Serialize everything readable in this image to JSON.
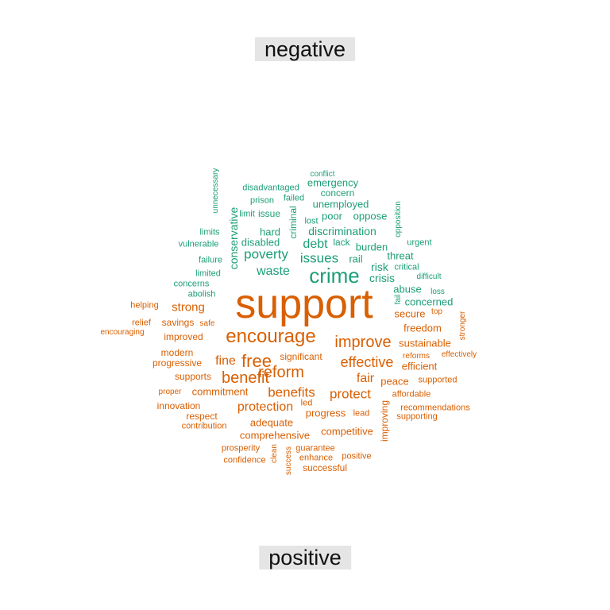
{
  "labels": {
    "negative": "negative",
    "positive": "positive"
  },
  "colors": {
    "negative": "#1b9e77",
    "positive": "#d95f02"
  },
  "words": [
    {
      "t": "support",
      "s": "positive",
      "v": 0
    },
    {
      "t": "crime",
      "s": "negative",
      "v": 0
    },
    {
      "t": "encourage",
      "s": "positive",
      "v": 0
    },
    {
      "t": "improve",
      "s": "positive",
      "v": 0
    },
    {
      "t": "free",
      "s": "positive",
      "v": 0
    },
    {
      "t": "reform",
      "s": "positive",
      "v": 0
    },
    {
      "t": "benefit",
      "s": "positive",
      "v": 0
    },
    {
      "t": "effective",
      "s": "positive",
      "v": 0
    },
    {
      "t": "issues",
      "s": "negative",
      "v": 0
    },
    {
      "t": "poverty",
      "s": "negative",
      "v": 0
    },
    {
      "t": "debt",
      "s": "negative",
      "v": 0
    },
    {
      "t": "waste",
      "s": "negative",
      "v": 0
    },
    {
      "t": "benefits",
      "s": "positive",
      "v": 0
    },
    {
      "t": "protect",
      "s": "positive",
      "v": 0
    },
    {
      "t": "protection",
      "s": "positive",
      "v": 0
    },
    {
      "t": "fine",
      "s": "positive",
      "v": 0
    },
    {
      "t": "fair",
      "s": "positive",
      "v": 0
    },
    {
      "t": "strong",
      "s": "positive",
      "v": 0
    },
    {
      "t": "crisis",
      "s": "negative",
      "v": 0
    },
    {
      "t": "risk",
      "s": "negative",
      "v": 0
    },
    {
      "t": "conservative",
      "s": "negative",
      "v": 1
    },
    {
      "t": "discrimination",
      "s": "negative",
      "v": 0
    },
    {
      "t": "hard",
      "s": "negative",
      "v": 0
    },
    {
      "t": "disabled",
      "s": "negative",
      "v": 0
    },
    {
      "t": "rail",
      "s": "negative",
      "v": 0
    },
    {
      "t": "burden",
      "s": "negative",
      "v": 0
    },
    {
      "t": "threat",
      "s": "negative",
      "v": 0
    },
    {
      "t": "unemployed",
      "s": "negative",
      "v": 0
    },
    {
      "t": "poor",
      "s": "negative",
      "v": 0
    },
    {
      "t": "oppose",
      "s": "negative",
      "v": 0
    },
    {
      "t": "emergency",
      "s": "negative",
      "v": 0
    },
    {
      "t": "concern",
      "s": "negative",
      "v": 0
    },
    {
      "t": "criminal",
      "s": "negative",
      "v": 1
    },
    {
      "t": "issue",
      "s": "negative",
      "v": 0
    },
    {
      "t": "lack",
      "s": "negative",
      "v": 0
    },
    {
      "t": "freedom",
      "s": "positive",
      "v": 0
    },
    {
      "t": "sustainable",
      "s": "positive",
      "v": 0
    },
    {
      "t": "peace",
      "s": "positive",
      "v": 0
    },
    {
      "t": "progress",
      "s": "positive",
      "v": 0
    },
    {
      "t": "adequate",
      "s": "positive",
      "v": 0
    },
    {
      "t": "comprehensive",
      "s": "positive",
      "v": 0
    },
    {
      "t": "commitment",
      "s": "positive",
      "v": 0
    },
    {
      "t": "competitive",
      "s": "positive",
      "v": 0
    },
    {
      "t": "secure",
      "s": "positive",
      "v": 0
    },
    {
      "t": "efficient",
      "s": "positive",
      "v": 0
    },
    {
      "t": "concerned",
      "s": "negative",
      "v": 0
    },
    {
      "t": "abuse",
      "s": "negative",
      "v": 0
    },
    {
      "t": "savings",
      "s": "positive",
      "v": 0
    },
    {
      "t": "improved",
      "s": "positive",
      "v": 0
    },
    {
      "t": "modern",
      "s": "positive",
      "v": 0
    },
    {
      "t": "progressive",
      "s": "positive",
      "v": 0
    },
    {
      "t": "supports",
      "s": "positive",
      "v": 0
    },
    {
      "t": "innovation",
      "s": "positive",
      "v": 0
    },
    {
      "t": "respect",
      "s": "positive",
      "v": 0
    },
    {
      "t": "significant",
      "s": "positive",
      "v": 0
    },
    {
      "t": "improving",
      "s": "positive",
      "v": 1
    },
    {
      "t": "disadvantaged",
      "s": "negative",
      "v": 0
    },
    {
      "t": "prison",
      "s": "negative",
      "v": 0
    },
    {
      "t": "failed",
      "s": "negative",
      "v": 0
    },
    {
      "t": "conflict",
      "s": "negative",
      "v": 0
    },
    {
      "t": "limit",
      "s": "negative",
      "v": 0
    },
    {
      "t": "lost",
      "s": "negative",
      "v": 0
    },
    {
      "t": "limits",
      "s": "negative",
      "v": 0
    },
    {
      "t": "vulnerable",
      "s": "negative",
      "v": 0
    },
    {
      "t": "failure",
      "s": "negative",
      "v": 0
    },
    {
      "t": "limited",
      "s": "negative",
      "v": 0
    },
    {
      "t": "concerns",
      "s": "negative",
      "v": 0
    },
    {
      "t": "abolish",
      "s": "negative",
      "v": 0
    },
    {
      "t": "critical",
      "s": "negative",
      "v": 0
    },
    {
      "t": "urgent",
      "s": "negative",
      "v": 0
    },
    {
      "t": "difficult",
      "s": "negative",
      "v": 0
    },
    {
      "t": "loss",
      "s": "negative",
      "v": 0
    },
    {
      "t": "opposition",
      "s": "negative",
      "v": 1
    },
    {
      "t": "unnecessary",
      "s": "negative",
      "v": 1
    },
    {
      "t": "fail",
      "s": "negative",
      "v": 1
    },
    {
      "t": "helping",
      "s": "positive",
      "v": 0
    },
    {
      "t": "relief",
      "s": "positive",
      "v": 0
    },
    {
      "t": "safe",
      "s": "positive",
      "v": 0
    },
    {
      "t": "encouraging",
      "s": "positive",
      "v": 0
    },
    {
      "t": "top",
      "s": "positive",
      "v": 0
    },
    {
      "t": "stronger",
      "s": "positive",
      "v": 1
    },
    {
      "t": "reforms",
      "s": "positive",
      "v": 0
    },
    {
      "t": "effectively",
      "s": "positive",
      "v": 0
    },
    {
      "t": "supported",
      "s": "positive",
      "v": 0
    },
    {
      "t": "affordable",
      "s": "positive",
      "v": 0
    },
    {
      "t": "recommendations",
      "s": "positive",
      "v": 0
    },
    {
      "t": "supporting",
      "s": "positive",
      "v": 0
    },
    {
      "t": "proper",
      "s": "positive",
      "v": 0
    },
    {
      "t": "contribution",
      "s": "positive",
      "v": 0
    },
    {
      "t": "led",
      "s": "positive",
      "v": 0
    },
    {
      "t": "lead",
      "s": "positive",
      "v": 0
    },
    {
      "t": "guarantee",
      "s": "positive",
      "v": 0
    },
    {
      "t": "prosperity",
      "s": "positive",
      "v": 0
    },
    {
      "t": "confidence",
      "s": "positive",
      "v": 0
    },
    {
      "t": "clean",
      "s": "positive",
      "v": 1
    },
    {
      "t": "success",
      "s": "positive",
      "v": 1
    },
    {
      "t": "enhance",
      "s": "positive",
      "v": 0
    },
    {
      "t": "positive",
      "s": "positive",
      "v": 0
    },
    {
      "t": "successful",
      "s": "positive",
      "v": 0
    }
  ]
}
